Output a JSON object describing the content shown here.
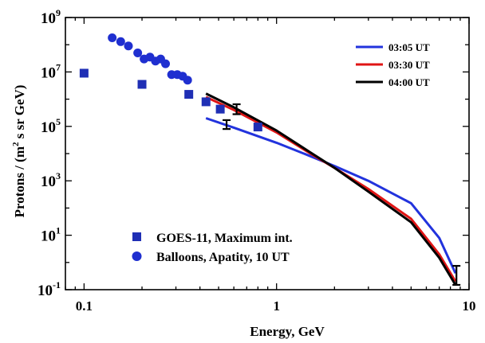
{
  "chart_data": {
    "type": "scatter",
    "x_scale": "log",
    "y_scale": "log",
    "xlabel": "Energy, GeV",
    "ylabel": "Protons / (m",
    "ylabel_sup": "2",
    "ylabel_rest": " s sr GeV)",
    "xlim": [
      0.08,
      10
    ],
    "ylim": [
      0.1,
      1000000000
    ],
    "x_ticks": [
      {
        "value": 0.1,
        "label": "0.1"
      },
      {
        "value": 1,
        "label": "1"
      },
      {
        "value": 10,
        "label": "10"
      }
    ],
    "y_ticks": [
      {
        "value": 0.1,
        "base": "10",
        "exp": "-1"
      },
      {
        "value": 10,
        "base": "10",
        "exp": "1"
      },
      {
        "value": 1000,
        "base": "10",
        "exp": "3"
      },
      {
        "value": 100000,
        "base": "10",
        "exp": "5"
      },
      {
        "value": 10000000,
        "base": "10",
        "exp": "7"
      },
      {
        "value": 1000000000,
        "base": "10",
        "exp": "9"
      }
    ],
    "line_legend": [
      {
        "label": "03:05 UT",
        "color": "#2233dd"
      },
      {
        "label": "03:30 UT",
        "color": "#e01515"
      },
      {
        "label": "04:00 UT",
        "color": "#000000"
      }
    ],
    "marker_legend": [
      {
        "label": "GOES-11, Maximum int.",
        "marker": "square",
        "color": "#1f2fb5"
      },
      {
        "label": "Balloons, Apatity, 10 UT",
        "marker": "circle",
        "color": "#1f2fd0"
      }
    ],
    "series": [
      {
        "name": "GOES-11, Maximum int.",
        "kind": "markers",
        "marker": "square",
        "color": "#1f2fb5",
        "points": [
          [
            0.1,
            9000000
          ],
          [
            0.2,
            3500000
          ],
          [
            0.35,
            1500000
          ],
          [
            0.43,
            800000
          ],
          [
            0.51,
            430000
          ],
          [
            0.8,
            95000
          ]
        ]
      },
      {
        "name": "Balloons, Apatity, 10 UT",
        "kind": "markers",
        "marker": "circle",
        "color": "#1f2fd0",
        "points": [
          [
            0.14,
            180000000
          ],
          [
            0.155,
            130000000
          ],
          [
            0.17,
            90000000
          ],
          [
            0.19,
            50000000
          ],
          [
            0.205,
            30000000
          ],
          [
            0.22,
            35000000
          ],
          [
            0.235,
            25000000
          ],
          [
            0.25,
            30000000
          ],
          [
            0.265,
            20000000
          ],
          [
            0.285,
            8000000
          ],
          [
            0.305,
            8000000
          ],
          [
            0.325,
            7000000
          ],
          [
            0.345,
            5000000
          ]
        ]
      },
      {
        "name": "03:05 UT",
        "kind": "line",
        "color": "#2233dd",
        "points": [
          [
            0.43,
            200000
          ],
          [
            0.6,
            90000
          ],
          [
            1,
            25000
          ],
          [
            1.5,
            8000
          ],
          [
            2,
            3500
          ],
          [
            3,
            1000
          ],
          [
            5,
            150
          ],
          [
            7,
            8
          ],
          [
            8.5,
            0.4
          ]
        ]
      },
      {
        "name": "03:30 UT",
        "kind": "line",
        "color": "#e01515",
        "points": [
          [
            0.43,
            1200000
          ],
          [
            0.6,
            400000
          ],
          [
            1,
            60000
          ],
          [
            1.5,
            10000
          ],
          [
            2,
            3000
          ],
          [
            3,
            500
          ],
          [
            5,
            40
          ],
          [
            7,
            2
          ],
          [
            8.5,
            0.2
          ]
        ]
      },
      {
        "name": "04:00 UT",
        "kind": "line",
        "color": "#000000",
        "points": [
          [
            0.43,
            1600000
          ],
          [
            0.6,
            500000
          ],
          [
            1,
            70000
          ],
          [
            1.5,
            11000
          ],
          [
            2,
            3000
          ],
          [
            3,
            400
          ],
          [
            5,
            30
          ],
          [
            7,
            1.5
          ],
          [
            8.5,
            0.15
          ]
        ]
      },
      {
        "name": "error-bars",
        "kind": "errorbars",
        "color": "#000000",
        "points": [
          [
            0.62,
            380000,
            280000,
            650000
          ],
          [
            0.55,
            120000,
            80000,
            170000
          ],
          [
            8.6,
            0.3,
            0.15,
            0.75
          ]
        ]
      }
    ]
  }
}
